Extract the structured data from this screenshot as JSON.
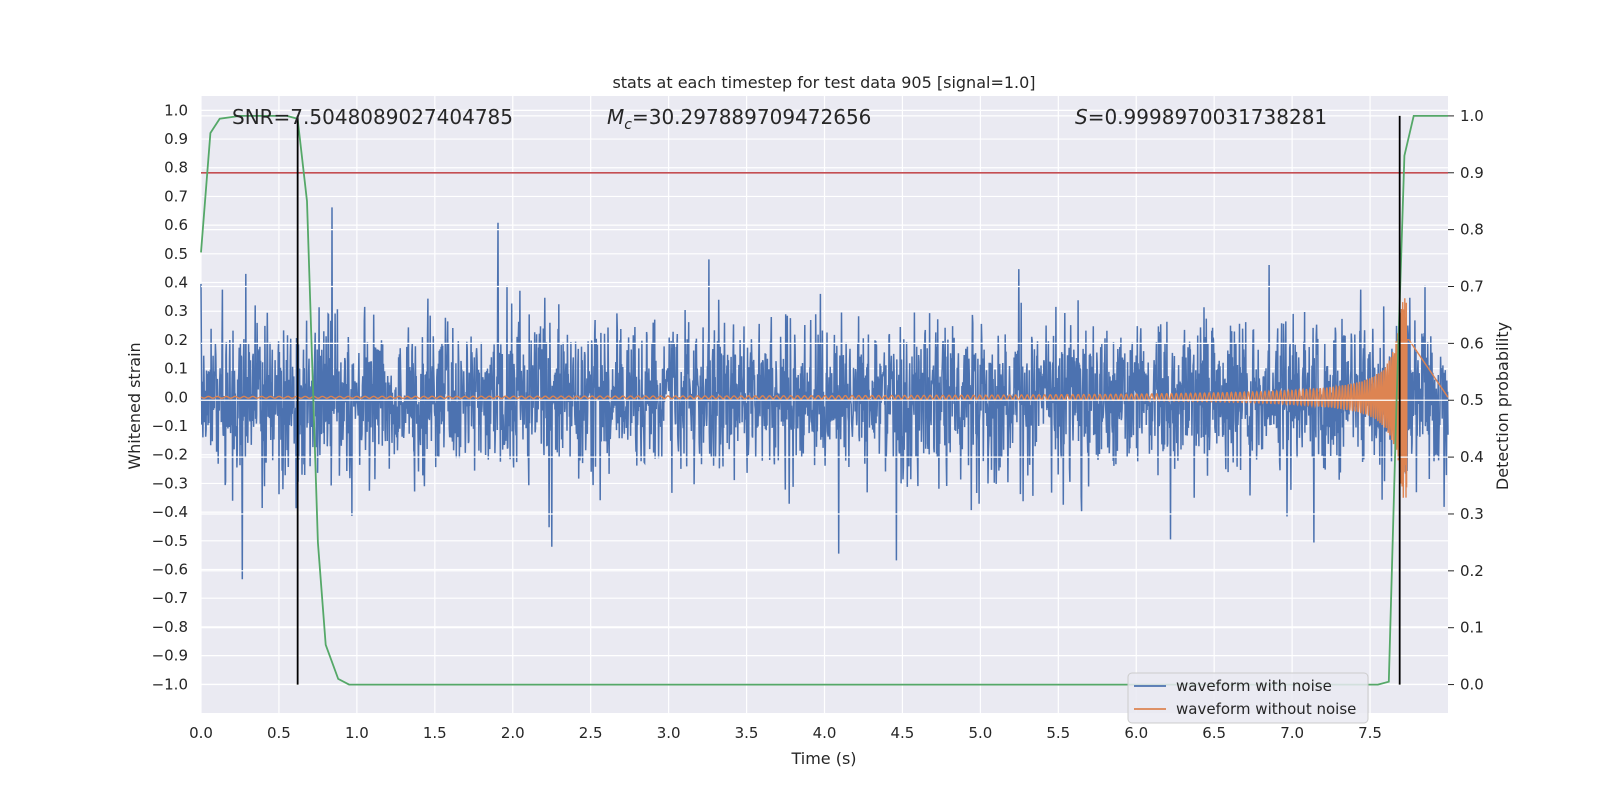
{
  "chart_data": {
    "type": "line",
    "title": "stats at each timestep for test data 905 [signal=1.0]",
    "xlabel": "Time (s)",
    "ylabel_left": "Whitened strain",
    "ylabel_right": "Detection probability",
    "xlim": [
      0.0,
      8.0
    ],
    "ylim_left": [
      -1.1,
      1.05
    ],
    "ylim_right": [
      -0.05,
      1.035
    ],
    "x_ticks": [
      "0.0",
      "0.5",
      "1.0",
      "1.5",
      "2.0",
      "2.5",
      "3.0",
      "3.5",
      "4.0",
      "4.5",
      "5.0",
      "5.5",
      "6.0",
      "6.5",
      "7.0",
      "7.5"
    ],
    "x_tick_values": [
      0.0,
      0.5,
      1.0,
      1.5,
      2.0,
      2.5,
      3.0,
      3.5,
      4.0,
      4.5,
      5.0,
      5.5,
      6.0,
      6.5,
      7.0,
      7.5
    ],
    "y_left_ticks": [
      "1.0",
      "0.9",
      "0.8",
      "0.7",
      "0.6",
      "0.5",
      "0.4",
      "0.3",
      "0.2",
      "0.1",
      "0.0",
      "−0.1",
      "−0.2",
      "−0.3",
      "−0.4",
      "−0.5",
      "−0.6",
      "−0.7",
      "−0.8",
      "−0.9",
      "−1.0"
    ],
    "y_left_tick_values": [
      1.0,
      0.9,
      0.8,
      0.7,
      0.6,
      0.5,
      0.4,
      0.3,
      0.2,
      0.1,
      0.0,
      -0.1,
      -0.2,
      -0.3,
      -0.4,
      -0.5,
      -0.6,
      -0.7,
      -0.8,
      -0.9,
      -1.0
    ],
    "y_right_ticks": [
      "1.0",
      "0.9",
      "0.8",
      "0.7",
      "0.6",
      "0.5",
      "0.4",
      "0.3",
      "0.2",
      "0.1",
      "0.0"
    ],
    "y_right_tick_values": [
      1.0,
      0.9,
      0.8,
      0.7,
      0.6,
      0.5,
      0.4,
      0.3,
      0.2,
      0.1,
      0.0
    ],
    "annotations": {
      "snr": "SNR=7.5048089027404785",
      "mc_symbol": "M",
      "mc_sub": "c",
      "mc_value": "=30.297889709472656",
      "s_symbol": "S",
      "s_value": "=0.9998970031738281"
    },
    "threshold": 0.9,
    "vertical_markers": [
      0.62,
      7.69
    ],
    "series": [
      {
        "name": "waveform with noise",
        "color": "#4c72b0",
        "axis": "left",
        "description_values": {
          "noise_sigma": 0.13,
          "x_start": 0.0,
          "x_end": 8.0
        }
      },
      {
        "name": "waveform without noise",
        "color": "#dd8452",
        "axis": "left",
        "chirp": {
          "t_merger": 7.74,
          "amp_start": 0.003,
          "amp_peak": 0.35
        }
      },
      {
        "name": "detection probability",
        "color": "#55a868",
        "axis": "right",
        "x": [
          0.0,
          0.06,
          0.12,
          0.25,
          0.4,
          0.55,
          0.62,
          0.68,
          0.75,
          0.8,
          0.88,
          0.95,
          1.0,
          2.0,
          3.0,
          4.0,
          5.0,
          6.0,
          7.0,
          7.3,
          7.55,
          7.62,
          7.67,
          7.72,
          7.78,
          8.0
        ],
        "y": [
          0.76,
          0.97,
          0.995,
          1.0,
          1.0,
          1.0,
          0.995,
          0.85,
          0.25,
          0.07,
          0.01,
          0.0,
          0.0,
          0.0,
          0.0,
          0.0,
          0.0,
          0.0,
          0.0,
          0.0,
          0.0,
          0.005,
          0.5,
          0.93,
          1.0,
          1.0
        ]
      },
      {
        "name": "threshold",
        "color": "#c44e52",
        "axis": "right",
        "x": [
          0.0,
          8.0
        ],
        "y": [
          0.9,
          0.9
        ]
      }
    ],
    "legend": {
      "position": "bottom-right",
      "entries": [
        {
          "label": "waveform with noise",
          "color": "#4c72b0"
        },
        {
          "label": "waveform without noise",
          "color": "#dd8452"
        }
      ]
    }
  }
}
